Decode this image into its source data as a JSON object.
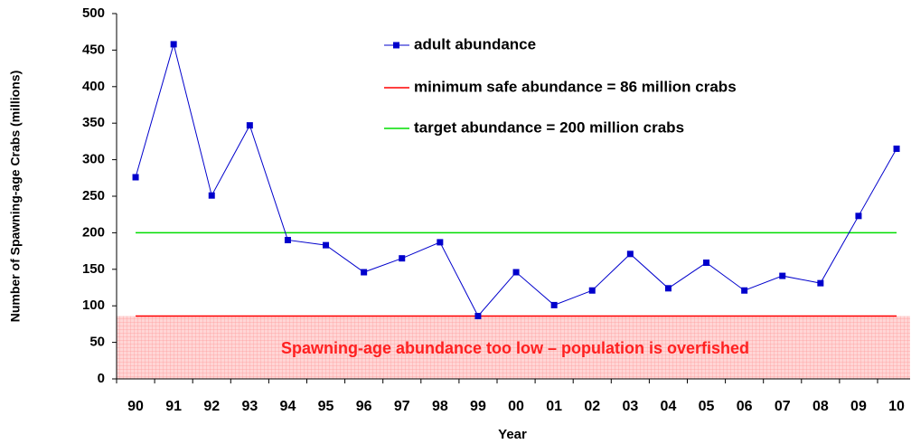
{
  "chart_data": {
    "type": "line",
    "y_label": "Number of Spawning-age Crabs (millions)",
    "x_label": "Year",
    "annotation": "Spawning-age abundance too low – population is overfished",
    "categories": [
      "90",
      "91",
      "92",
      "93",
      "94",
      "95",
      "96",
      "97",
      "98",
      "99",
      "00",
      "01",
      "02",
      "03",
      "04",
      "05",
      "06",
      "07",
      "08",
      "09",
      "10"
    ],
    "series": [
      {
        "name": "adult abundance",
        "color": "#0000cc",
        "values": [
          276,
          458,
          251,
          347,
          190,
          183,
          146,
          165,
          187,
          86,
          146,
          101,
          121,
          171,
          124,
          159,
          121,
          141,
          131,
          223,
          315
        ]
      }
    ],
    "reference_lines": [
      {
        "name": "minimum safe abundance = 86 million crabs",
        "value": 86,
        "color": "#ff0000"
      },
      {
        "name": "target abundance = 200 million crabs",
        "value": 200,
        "color": "#00dd00"
      }
    ],
    "ylim": [
      0,
      500
    ],
    "yticks": [
      0,
      50,
      100,
      150,
      200,
      250,
      300,
      350,
      400,
      450,
      500
    ]
  }
}
